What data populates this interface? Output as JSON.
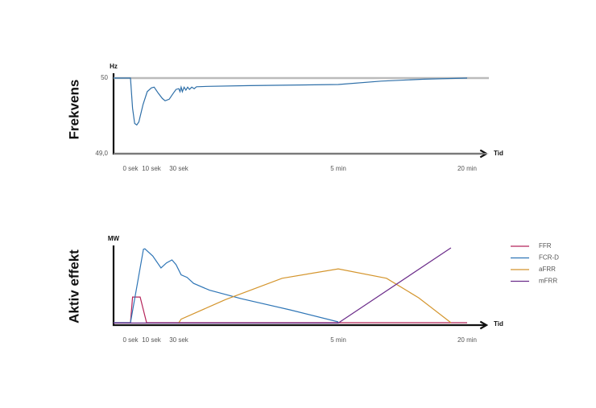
{
  "chart_data": [
    {
      "type": "line",
      "y_label": "Frekvens",
      "y_unit": "Hz",
      "x_label": "Tid",
      "color": "#2e6fa8",
      "xlim": [
        -8,
        1340
      ],
      "xticks": [
        {
          "value": 0,
          "label": "0 sek"
        },
        {
          "value": 10,
          "label": "10 sek"
        },
        {
          "value": 30,
          "label": "30 sek"
        },
        {
          "value": 300,
          "label": "5 min"
        },
        {
          "value": 1200,
          "label": "20 min"
        }
      ],
      "ylim": [
        49,
        50
      ],
      "yticks": [
        50,
        {
          "value": 49,
          "label": "49,0"
        }
      ],
      "grid": true,
      "x": [
        -8,
        0,
        1,
        2,
        3,
        4,
        6,
        8,
        10,
        12,
        15,
        18,
        20,
        23,
        26,
        28,
        30,
        32,
        34,
        36,
        39,
        42,
        45,
        48,
        52,
        56,
        60,
        80,
        150,
        300,
        600,
        900,
        1200
      ],
      "values": [
        50,
        50,
        49.6,
        49.4,
        49.38,
        49.42,
        49.65,
        49.82,
        49.87,
        49.88,
        49.8,
        49.73,
        49.7,
        49.72,
        49.8,
        49.85,
        49.86,
        49.82,
        49.88,
        49.82,
        49.88,
        49.84,
        49.88,
        49.85,
        49.88,
        49.86,
        49.885,
        49.89,
        49.9,
        49.915,
        49.96,
        49.985,
        50
      ]
    },
    {
      "type": "line",
      "y_label": "Aktiv effekt",
      "y_unit": "MW",
      "x_label": "Tid",
      "xlim": [
        -8,
        1340
      ],
      "xticks": [
        {
          "value": 0,
          "label": "0 sek"
        },
        {
          "value": 10,
          "label": "10 sek"
        },
        {
          "value": 30,
          "label": "30 sek"
        },
        {
          "value": 300,
          "label": "5 min"
        },
        {
          "value": 1200,
          "label": "20 min"
        }
      ],
      "ylim": [
        0,
        100
      ],
      "legend": "right",
      "series": [
        {
          "name": "FFR",
          "color": "#b5245a",
          "x": [
            -8,
            0,
            1,
            4.6,
            7.7,
            1200
          ],
          "values": [
            1.9,
            1.9,
            32,
            32,
            1.9,
            1.9
          ]
        },
        {
          "name": "FCR-D",
          "color": "#2e75b6",
          "x": [
            -8,
            0,
            6.2,
            6.9,
            11,
            17,
            21,
            25,
            28,
            34,
            44,
            55,
            82,
            136,
            218,
            300
          ],
          "values": [
            1.9,
            1.9,
            88,
            88.5,
            80,
            66,
            72,
            75.5,
            70,
            58,
            55,
            48,
            40,
            30,
            17,
            2.8
          ]
        },
        {
          "name": "aFRR",
          "color": "#d4952d",
          "x": [
            30,
            34,
            109,
            205,
            300,
            637,
            862,
            1087
          ],
          "values": [
            1.9,
            6,
            29,
            54,
            65,
            54,
            31,
            1.9
          ]
        },
        {
          "name": "mFRR",
          "color": "#6b2c8a",
          "x": [
            -8,
            300,
            1087
          ],
          "values": [
            1.5,
            1.5,
            89.6
          ]
        }
      ]
    }
  ]
}
